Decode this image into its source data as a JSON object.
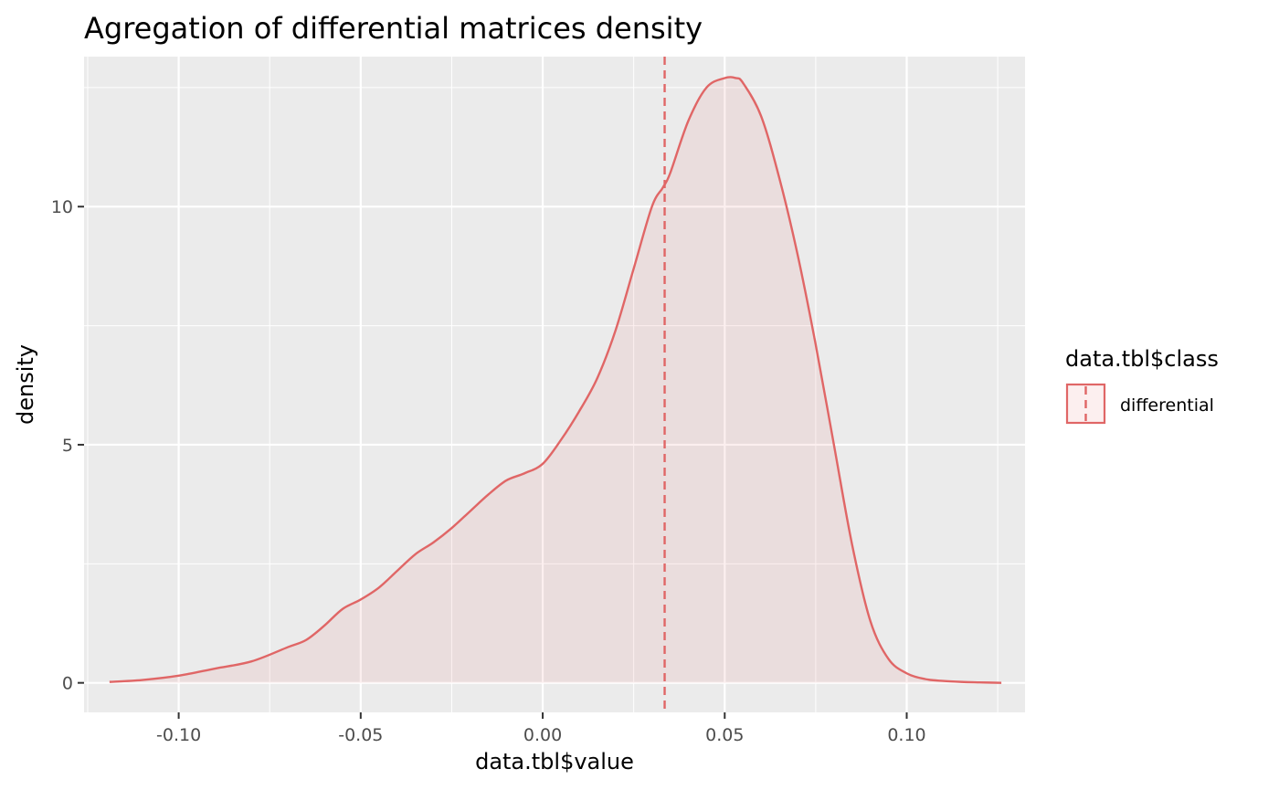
{
  "chart_data": {
    "type": "area",
    "title": "Agregation of differential matrices density",
    "xlabel": "data.tbl$value",
    "ylabel": "density",
    "xlim": [
      -0.126,
      0.1325
    ],
    "ylim": [
      -0.62,
      13.15
    ],
    "x_ticks": [
      -0.1,
      -0.05,
      0.0,
      0.05,
      0.1
    ],
    "x_tick_labels": [
      "-0.10",
      "-0.05",
      "0.00",
      "0.05",
      "0.10"
    ],
    "y_ticks": [
      0,
      5,
      10
    ],
    "y_tick_labels": [
      "0",
      "5",
      "10"
    ],
    "grid": true,
    "legend": {
      "title": "data.tbl$class",
      "placement": "right",
      "entries": [
        "differential"
      ]
    },
    "colors": {
      "series": "#e06666",
      "fill": "#e06666",
      "panel": "#ebebeb",
      "grid": "#ffffff"
    },
    "vline": {
      "x": 0.0335,
      "style": "dashed"
    },
    "series": [
      {
        "name": "differential",
        "x": [
          -0.119,
          -0.11,
          -0.1,
          -0.09,
          -0.08,
          -0.07,
          -0.065,
          -0.06,
          -0.055,
          -0.05,
          -0.045,
          -0.04,
          -0.035,
          -0.03,
          -0.025,
          -0.02,
          -0.015,
          -0.01,
          -0.005,
          0.0,
          0.005,
          0.01,
          0.015,
          0.02,
          0.025,
          0.03,
          0.033,
          0.035,
          0.04,
          0.045,
          0.05,
          0.053,
          0.055,
          0.06,
          0.065,
          0.07,
          0.075,
          0.08,
          0.085,
          0.09,
          0.095,
          0.1,
          0.105,
          0.11,
          0.115,
          0.12,
          0.126
        ],
        "values": [
          0.02,
          0.06,
          0.15,
          0.3,
          0.45,
          0.75,
          0.9,
          1.2,
          1.55,
          1.75,
          2.0,
          2.35,
          2.7,
          2.95,
          3.25,
          3.6,
          3.95,
          4.25,
          4.4,
          4.6,
          5.1,
          5.7,
          6.4,
          7.4,
          8.7,
          10.0,
          10.4,
          10.7,
          11.8,
          12.5,
          12.7,
          12.7,
          12.6,
          11.9,
          10.6,
          9.0,
          7.1,
          5.0,
          2.9,
          1.3,
          0.5,
          0.2,
          0.08,
          0.04,
          0.02,
          0.01,
          0.0
        ]
      }
    ]
  }
}
